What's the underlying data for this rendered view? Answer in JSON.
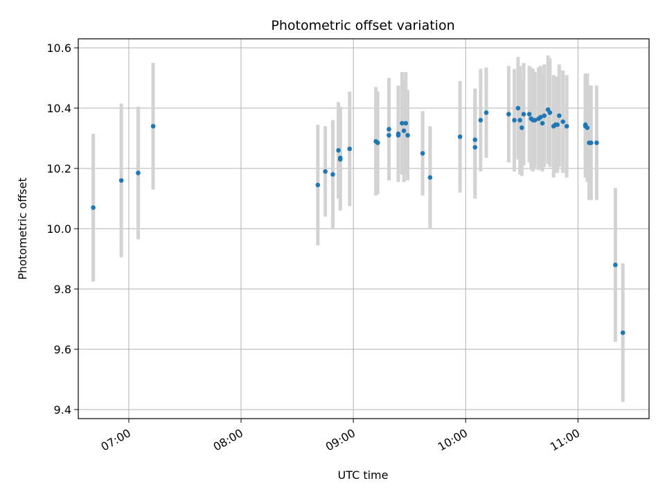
{
  "chart_data": {
    "type": "scatter",
    "title": "Photometric offset variation",
    "xlabel": "UTC time",
    "ylabel": "Photometric offset",
    "grid": true,
    "legend": "none",
    "xlim": [
      "06:33",
      "11:38"
    ],
    "ylim": [
      9.37,
      10.63
    ],
    "x_ticks": [
      "07:00",
      "08:00",
      "09:00",
      "10:00",
      "11:00"
    ],
    "y_ticks": [
      9.4,
      9.6,
      9.8,
      10.0,
      10.2,
      10.4,
      10.6
    ],
    "colors": {
      "point": "#1f77b4",
      "errorbar": "#d3d3d3",
      "grid": "#b0b0b0"
    },
    "series": [
      {
        "x": [
          "06:41",
          "06:56",
          "07:05",
          "07:13",
          "08:41",
          "08:45",
          "08:49",
          "08:52",
          "08:53",
          "08:53",
          "08:58",
          "09:12",
          "09:13",
          "09:19",
          "09:19",
          "09:24",
          "09:24",
          "09:26",
          "09:27",
          "09:28",
          "09:29",
          "09:37",
          "09:41",
          "09:57",
          "10:05",
          "10:05",
          "10:08",
          "10:11",
          "10:23",
          "10:26",
          "10:28",
          "10:29",
          "10:30",
          "10:31",
          "10:34",
          "10:35",
          "10:36",
          "10:37",
          "10:39",
          "10:40",
          "10:41",
          "10:42",
          "10:44",
          "10:45",
          "10:47",
          "10:48",
          "10:49",
          "10:50",
          "10:52",
          "10:54",
          "11:04",
          "11:04",
          "11:05",
          "11:06",
          "11:07",
          "11:10",
          "11:20",
          "11:24"
        ],
        "y": [
          10.07,
          10.16,
          10.185,
          10.34,
          10.145,
          10.19,
          10.18,
          10.26,
          10.23,
          10.235,
          10.265,
          10.29,
          10.285,
          10.31,
          10.33,
          10.315,
          10.31,
          10.35,
          10.325,
          10.35,
          10.31,
          10.25,
          10.17,
          10.305,
          10.295,
          10.27,
          10.36,
          10.385,
          10.38,
          10.36,
          10.4,
          10.36,
          10.335,
          10.38,
          10.38,
          10.365,
          10.36,
          10.36,
          10.365,
          10.37,
          10.35,
          10.375,
          10.395,
          10.385,
          10.34,
          10.345,
          10.345,
          10.375,
          10.355,
          10.34,
          10.34,
          10.345,
          10.335,
          10.285,
          10.285,
          10.285,
          9.88,
          9.655
        ],
        "err": [
          0.245,
          0.255,
          0.22,
          0.21,
          0.2,
          0.15,
          0.18,
          0.16,
          0.17,
          0.17,
          0.19,
          0.18,
          0.17,
          0.15,
          0.17,
          0.16,
          0.15,
          0.17,
          0.17,
          0.17,
          0.15,
          0.14,
          0.17,
          0.185,
          0.17,
          0.17,
          0.17,
          0.15,
          0.16,
          0.17,
          0.17,
          0.18,
          0.16,
          0.17,
          0.16,
          0.17,
          0.17,
          0.16,
          0.17,
          0.17,
          0.16,
          0.17,
          0.18,
          0.18,
          0.17,
          0.16,
          0.16,
          0.17,
          0.17,
          0.17,
          0.17,
          0.17,
          0.18,
          0.19,
          0.19,
          0.19,
          0.255,
          0.23
        ]
      }
    ]
  }
}
